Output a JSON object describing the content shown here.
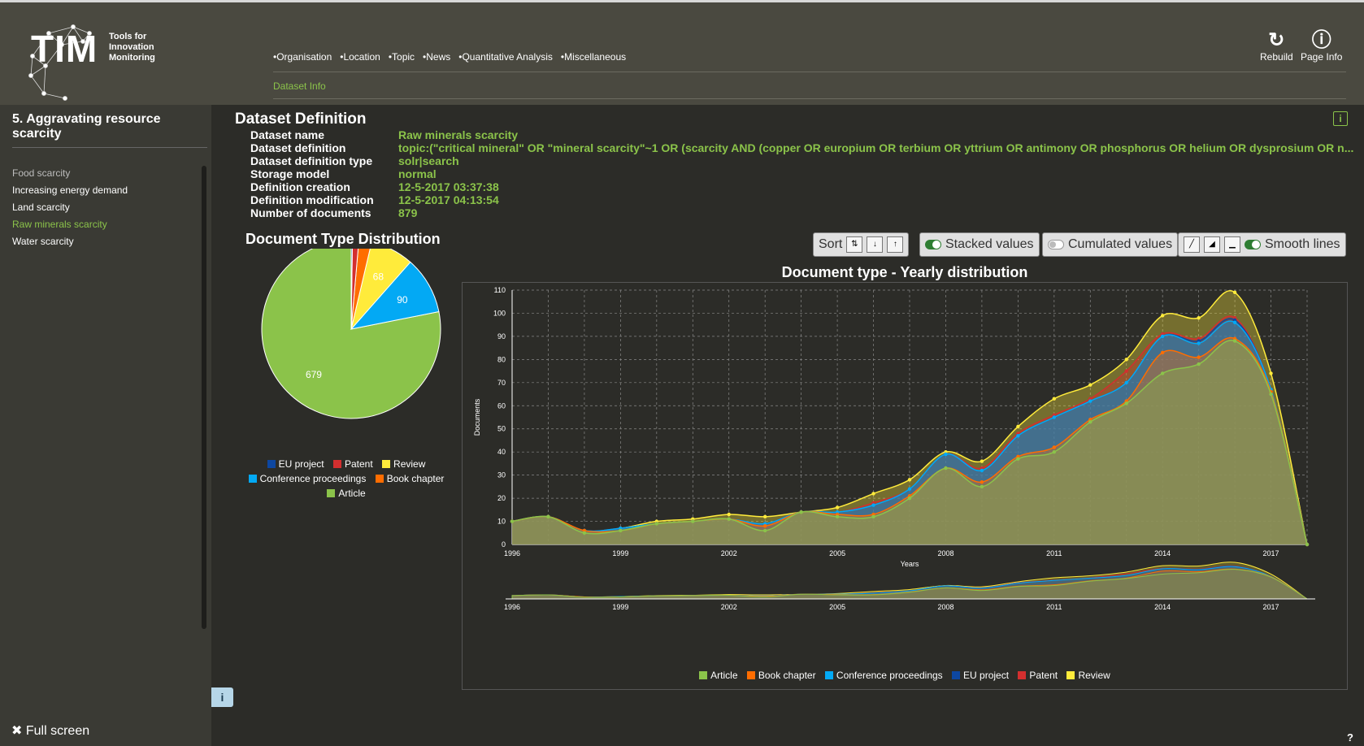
{
  "header": {
    "logo_text": "TIM",
    "logo_sub": [
      "Tools for",
      "Innovation",
      "Monitoring"
    ],
    "nav": [
      "Organisation",
      "Location",
      "Topic",
      "News",
      "Quantitative Analysis",
      "Miscellaneous"
    ],
    "dataset_info": "Dataset Info",
    "rebuild": "Rebuild",
    "page_info": "Page Info"
  },
  "sidebar": {
    "title": "5. Aggravating resource scarcity",
    "items": [
      {
        "label": "Food scarcity",
        "color": "#bdbdbd"
      },
      {
        "label": "Increasing energy demand",
        "color": "#ffffff"
      },
      {
        "label": "Land scarcity",
        "color": "#ffffff"
      },
      {
        "label": "Raw minerals scarcity",
        "color": "#8bc34a"
      },
      {
        "label": "Water scarcity",
        "color": "#ffffff"
      }
    ],
    "fullscreen": "Full screen",
    "info_tab": "i"
  },
  "definition": {
    "title": "Dataset Definition",
    "rows": [
      {
        "k": "Dataset name",
        "v": "Raw minerals scarcity"
      },
      {
        "k": "Dataset definition",
        "v": "topic:(\"critical mineral\" OR \"mineral scarcity\"~1 OR (scarcity AND (copper OR europium OR terbium OR yttrium OR antimony OR phosphorus OR helium OR dysprosium OR n..."
      },
      {
        "k": "Dataset definition type",
        "v": "solr|search"
      },
      {
        "k": "Storage model",
        "v": "normal"
      },
      {
        "k": "Definition creation",
        "v": "12-5-2017 03:37:38"
      },
      {
        "k": "Definition modification",
        "v": "12-5-2017 04:13:54"
      },
      {
        "k": "Number of documents",
        "v": "879"
      }
    ]
  },
  "toolbar": {
    "sort": "Sort",
    "stacked": "Stacked values",
    "cumulated": "Cumulated values",
    "smooth": "Smooth lines"
  },
  "colors": {
    "Article": "#8bc34a",
    "Book chapter": "#ff6d00",
    "Conference proceedings": "#03a9f4",
    "EU project": "#0d47a1",
    "Patent": "#d32f2f",
    "Review": "#ffeb3b"
  },
  "chart_data": [
    {
      "type": "pie",
      "title": "Document Type Distribution",
      "labels": [
        "Article",
        "Conference proceedings",
        "Review",
        "Book chapter",
        "Patent",
        "EU project"
      ],
      "values": [
        679,
        90,
        68,
        20,
        10,
        2
      ],
      "data_labels": [
        "679",
        "90",
        "68",
        "",
        "",
        ""
      ],
      "legend": [
        "EU project",
        "Patent",
        "Review",
        "Conference proceedings",
        "Book chapter",
        "Article"
      ]
    },
    {
      "type": "area",
      "title": "Document type - Yearly distribution",
      "xlabel": "Years",
      "ylabel": "Documents",
      "stacked": true,
      "ylim": [
        0,
        110
      ],
      "yticks": [
        0,
        10,
        20,
        30,
        40,
        50,
        60,
        70,
        80,
        90,
        100,
        110
      ],
      "xticks": [
        1996,
        1999,
        2002,
        2005,
        2008,
        2011,
        2014,
        2017
      ],
      "x": [
        1996,
        1997,
        1998,
        1999,
        2000,
        2001,
        2002,
        2003,
        2004,
        2005,
        2006,
        2007,
        2008,
        2009,
        2010,
        2011,
        2012,
        2013,
        2014,
        2015,
        2016,
        2017,
        2018
      ],
      "series": [
        {
          "name": "Article",
          "values": [
            10,
            12,
            5,
            6,
            9,
            10,
            11,
            6,
            14,
            12,
            12,
            20,
            33,
            25,
            37,
            40,
            53,
            61,
            74,
            78,
            88,
            65,
            0
          ]
        },
        {
          "name": "Book chapter",
          "values": [
            0,
            0,
            1,
            0,
            0,
            0,
            0,
            2,
            0,
            1,
            1,
            1,
            0,
            2,
            1,
            2,
            1,
            1,
            9,
            3,
            1,
            1,
            0
          ]
        },
        {
          "name": "Conference proceedings",
          "values": [
            0,
            0,
            0,
            1,
            0,
            0,
            0,
            1,
            0,
            1,
            4,
            3,
            6,
            5,
            9,
            13,
            8,
            8,
            7,
            6,
            7,
            1,
            0
          ]
        },
        {
          "name": "EU project",
          "values": [
            0,
            0,
            0,
            0,
            0,
            0,
            0,
            0,
            0,
            0,
            0,
            0,
            0,
            0,
            0,
            0,
            0,
            0,
            0,
            1,
            1,
            0,
            0
          ]
        },
        {
          "name": "Patent",
          "values": [
            0,
            0,
            0,
            0,
            0,
            0,
            0,
            0,
            0,
            0,
            1,
            0,
            0,
            1,
            1,
            1,
            1,
            5,
            1,
            1,
            1,
            0,
            0
          ]
        },
        {
          "name": "Review",
          "values": [
            0,
            0,
            0,
            0,
            1,
            1,
            2,
            3,
            0,
            2,
            4,
            4,
            1,
            3,
            3,
            7,
            6,
            5,
            8,
            9,
            11,
            7,
            0
          ]
        }
      ],
      "legend": [
        "Article",
        "Book chapter",
        "Conference proceedings",
        "EU project",
        "Patent",
        "Review"
      ]
    }
  ]
}
